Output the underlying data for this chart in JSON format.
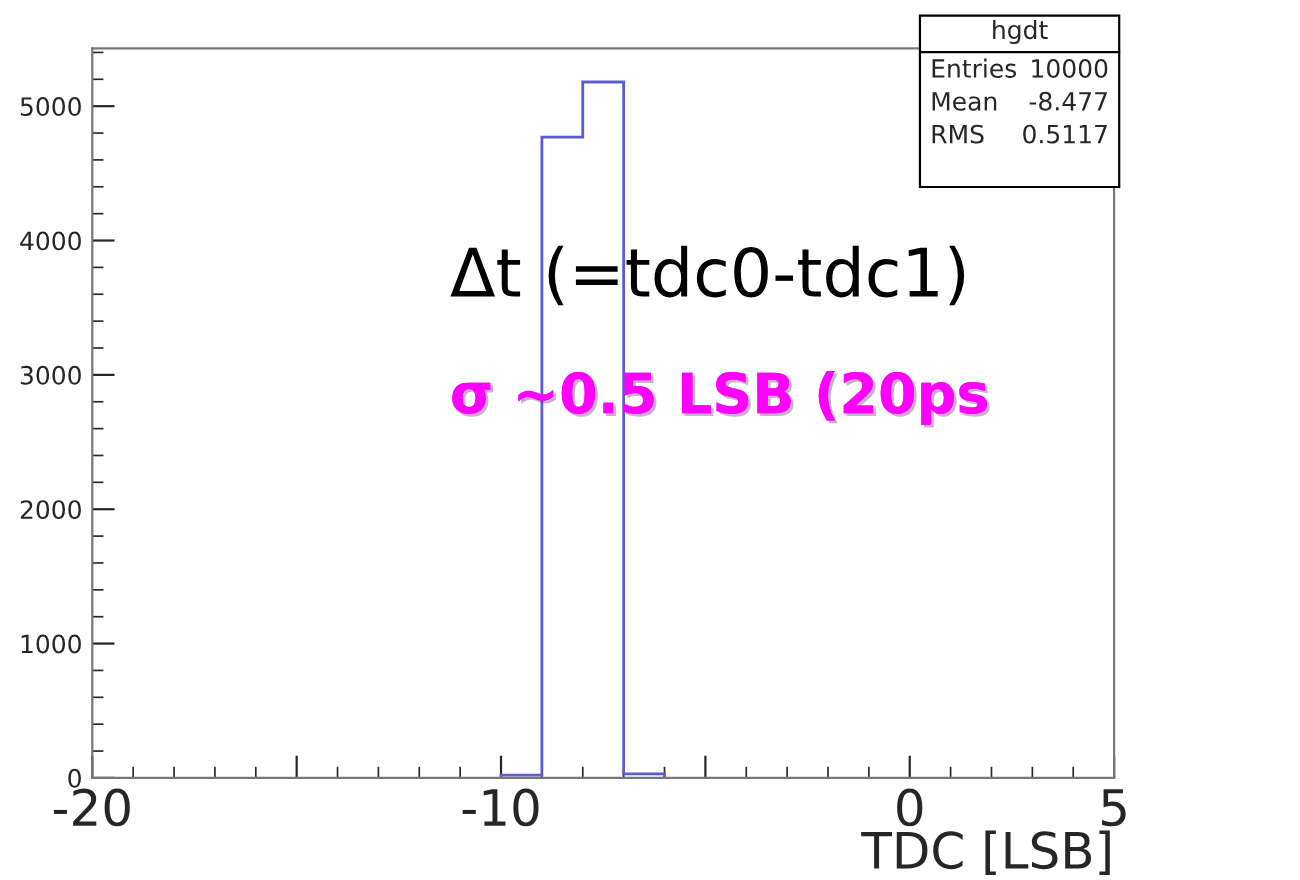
{
  "chart_data": {
    "type": "histogram",
    "xlabel": "TDC [LSB]",
    "bins": [
      -10,
      -9,
      -8,
      -7,
      -6
    ],
    "values": [
      20,
      4770,
      5180,
      30
    ],
    "color": "#5c5cd0",
    "xlim": [
      -20,
      5
    ],
    "ylim": [
      0,
      5430
    ],
    "xticks": [
      {
        "value": -20,
        "label": "-20"
      },
      {
        "value": -15,
        "label": null
      },
      {
        "value": -10,
        "label": "-10"
      },
      {
        "value": -5,
        "label": null
      },
      {
        "value": 0,
        "label": "0"
      },
      5
    ],
    "yticks": [
      0,
      1000,
      2000,
      3000,
      4000,
      5000
    ],
    "grid": false,
    "legend": false,
    "annotations": [
      "Δt (=tdc0-tdc1)",
      "σ ~0.5 LSB (20ps",
      "hgdt",
      "Entries 10000",
      "Mean -8.477",
      "RMS 0.5117"
    ]
  }
}
